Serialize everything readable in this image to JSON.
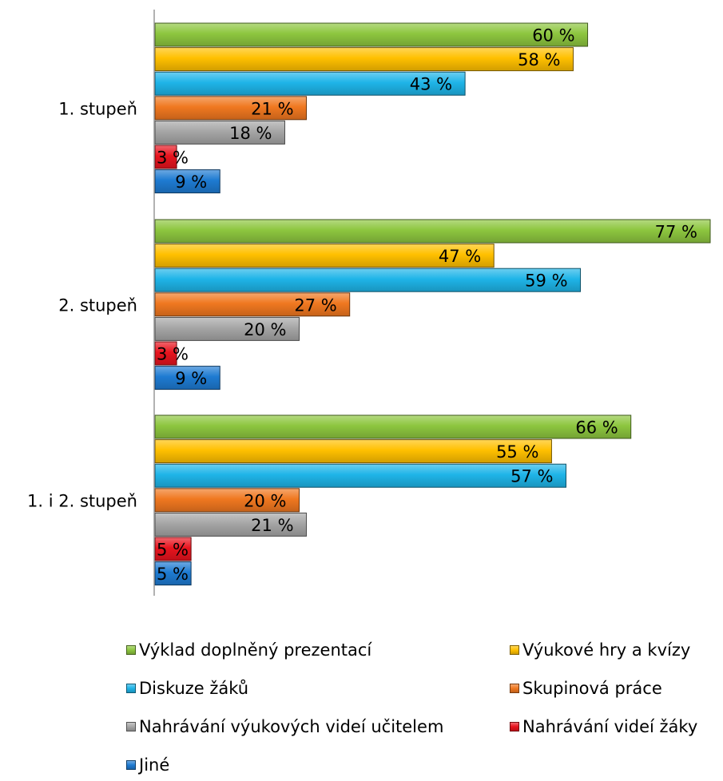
{
  "chart_data": {
    "type": "bar",
    "orientation": "horizontal",
    "categories": [
      "1. stupeň",
      "2. stupeň",
      "1. i 2. stupeň"
    ],
    "series": [
      {
        "name": "Výklad doplněný prezentací",
        "color": "#8DC63F",
        "values": [
          60,
          77,
          66
        ],
        "labels": [
          "60 %",
          "77 %",
          "66 %"
        ]
      },
      {
        "name": "Výukové hry a kvízy",
        "color": "#FFC000",
        "values": [
          58,
          47,
          55
        ],
        "labels": [
          "58 %",
          "47 %",
          "55 %"
        ]
      },
      {
        "name": "Diskuze žáků",
        "color": "#1FB4E8",
        "values": [
          43,
          59,
          57
        ],
        "labels": [
          "43 %",
          "59 %",
          "57 %"
        ]
      },
      {
        "name": "Skupinová práce",
        "color": "#F07820",
        "values": [
          21,
          27,
          20
        ],
        "labels": [
          "21 %",
          "27 %",
          "20 %"
        ]
      },
      {
        "name": "Nahrávání výukových videí učitelem",
        "color": "#A6A6A6",
        "values": [
          18,
          20,
          21
        ],
        "labels": [
          "18 %",
          "20 %",
          "21 %"
        ]
      },
      {
        "name": "Nahrávání videí žáky",
        "color": "#E8141E",
        "values": [
          3,
          3,
          5
        ],
        "labels": [
          "3 %",
          "3 %",
          "5 %"
        ]
      },
      {
        "name": "Jiné",
        "color": "#1E7BD2",
        "values": [
          9,
          9,
          5
        ],
        "labels": [
          "9 %",
          "9 %",
          "5 %"
        ]
      }
    ],
    "xlim": [
      0,
      78
    ],
    "grid": false,
    "legend_position": "bottom"
  }
}
